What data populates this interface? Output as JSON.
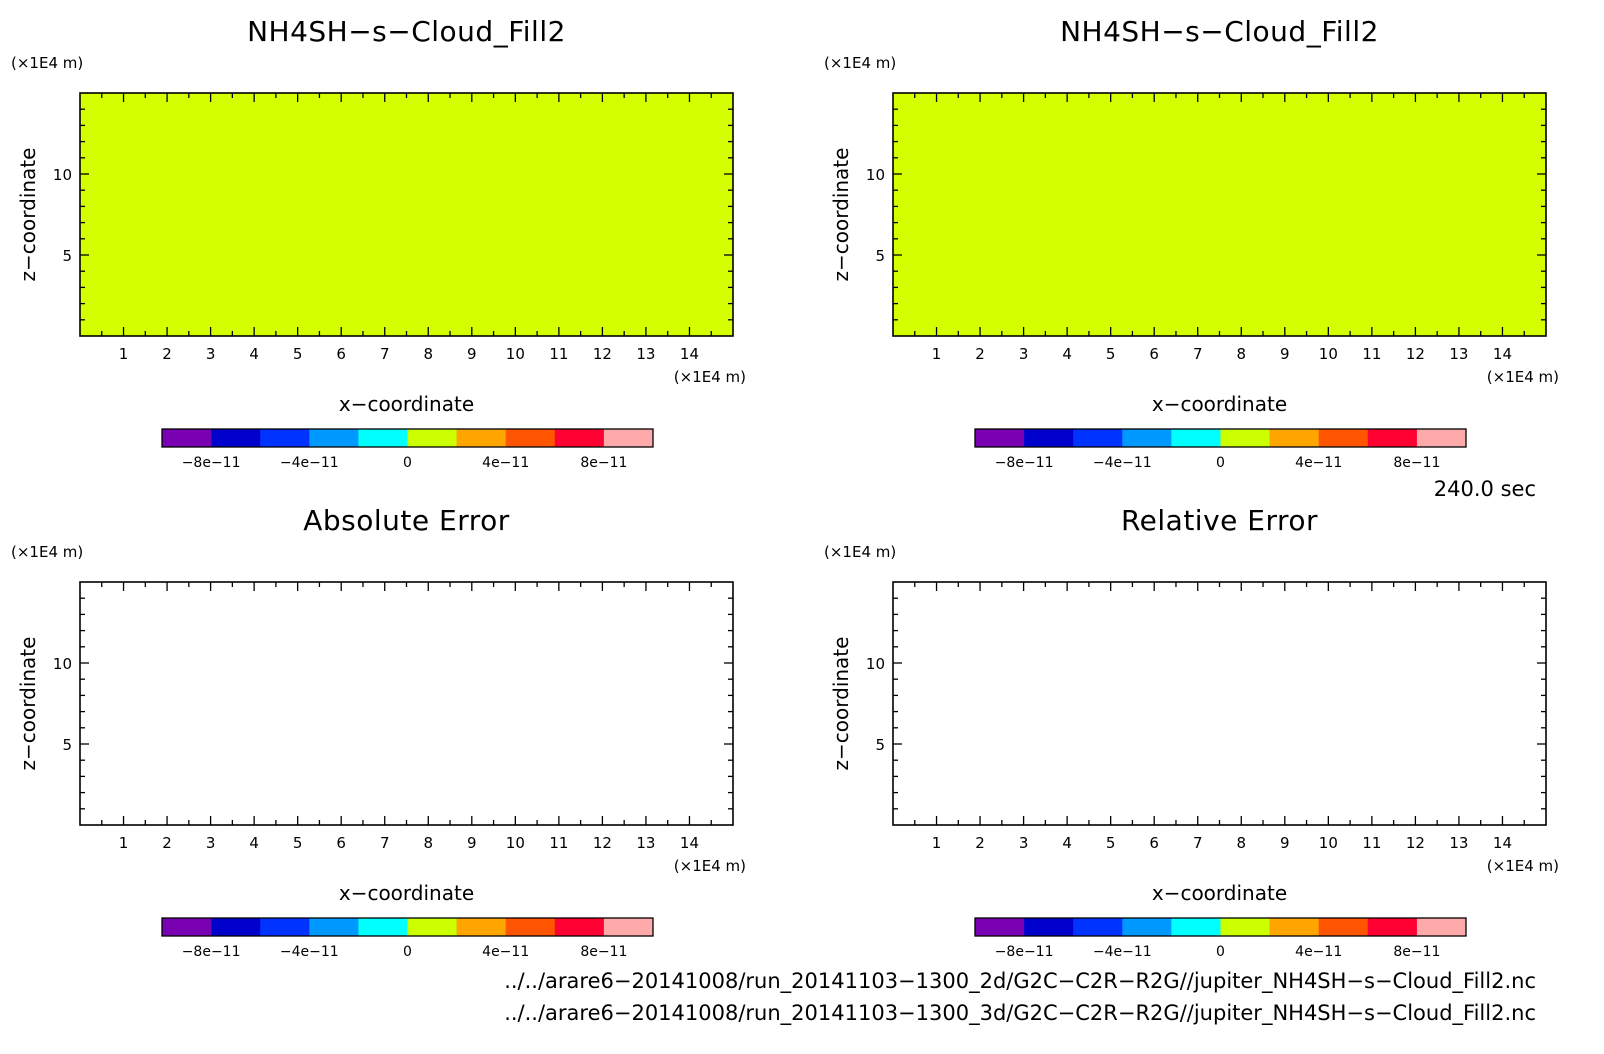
{
  "time_label": "240.0 sec",
  "file_paths": [
    "../../arare6-20141008/run_20141103-1300_2d/G2C-C2R-R2G//jupiter_NH4SH-s-Cloud_Fill2.nc",
    "../../arare6-20141008/run_20141103-1300_3d/G2C-C2R-R2G//jupiter_NH4SH-s-Cloud_Fill2.nc"
  ],
  "colorbar": {
    "colors": [
      "#7a00b4",
      "#0000cc",
      "#0033ff",
      "#0099ff",
      "#00ffff",
      "#ccff00",
      "#ffa500",
      "#ff5500",
      "#ff0033",
      "#ffaaaa"
    ],
    "bounds": [
      -1e-10,
      1e-10
    ],
    "tick_labels": [
      "-8e-11",
      "-4e-11",
      "0",
      "4e-11",
      "8e-11"
    ]
  },
  "chart_data": [
    {
      "type": "heatmap",
      "title": "NH4SH-s-Cloud_Fill2",
      "xlabel": "x-coordinate",
      "ylabel": "z-coordinate",
      "x_unit": "(x1E4 m)",
      "y_unit": "(x1E4 m)",
      "xlim": [
        0,
        15
      ],
      "ylim": [
        0,
        15
      ],
      "x_ticks": [
        "1",
        "2",
        "3",
        "4",
        "5",
        "6",
        "7",
        "8",
        "9",
        "10",
        "11",
        "12",
        "13",
        "14"
      ],
      "y_ticks": [
        "5",
        "10"
      ],
      "field_value": 0,
      "fill_color": "#d4ff00"
    },
    {
      "type": "heatmap",
      "title": "NH4SH-s-Cloud_Fill2",
      "xlabel": "x-coordinate",
      "ylabel": "z-coordinate",
      "x_unit": "(x1E4 m)",
      "y_unit": "(x1E4 m)",
      "xlim": [
        0,
        15
      ],
      "ylim": [
        0,
        15
      ],
      "x_ticks": [
        "1",
        "2",
        "3",
        "4",
        "5",
        "6",
        "7",
        "8",
        "9",
        "10",
        "11",
        "12",
        "13",
        "14"
      ],
      "y_ticks": [
        "5",
        "10"
      ],
      "field_value": 0,
      "fill_color": "#d4ff00"
    },
    {
      "type": "heatmap",
      "title": "Absolute Error",
      "xlabel": "x-coordinate",
      "ylabel": "z-coordinate",
      "x_unit": "(x1E4 m)",
      "y_unit": "(x1E4 m)",
      "xlim": [
        0,
        15
      ],
      "ylim": [
        0,
        15
      ],
      "x_ticks": [
        "1",
        "2",
        "3",
        "4",
        "5",
        "6",
        "7",
        "8",
        "9",
        "10",
        "11",
        "12",
        "13",
        "14"
      ],
      "y_ticks": [
        "5",
        "10"
      ],
      "field_value": null,
      "fill_color": "#ffffff"
    },
    {
      "type": "heatmap",
      "title": "Relative Error",
      "xlabel": "x-coordinate",
      "ylabel": "z-coordinate",
      "x_unit": "(x1E4 m)",
      "y_unit": "(x1E4 m)",
      "xlim": [
        0,
        15
      ],
      "ylim": [
        0,
        15
      ],
      "x_ticks": [
        "1",
        "2",
        "3",
        "4",
        "5",
        "6",
        "7",
        "8",
        "9",
        "10",
        "11",
        "12",
        "13",
        "14"
      ],
      "y_ticks": [
        "5",
        "10"
      ],
      "field_value": null,
      "fill_color": "#ffffff"
    }
  ]
}
